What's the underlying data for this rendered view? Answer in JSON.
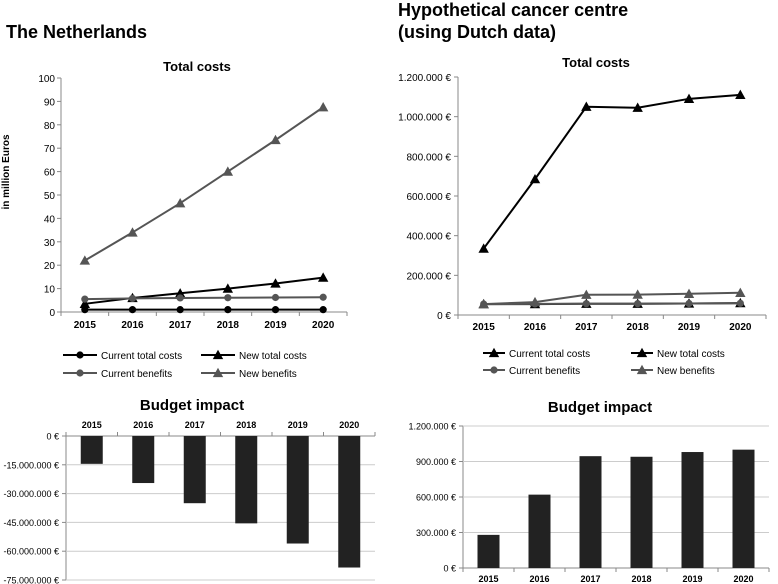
{
  "headings": {
    "left": "The Netherlands",
    "right_line1": "Hypothetical cancer centre",
    "right_line2": "(using Dutch data)"
  },
  "colors": {
    "dark": "#000000",
    "grey": "#555555",
    "axis": "#888888",
    "bar": "#222222",
    "grid": "#cccccc"
  },
  "chart_data": [
    {
      "type": "line",
      "title": "Total costs",
      "ylabel": "in million Euros",
      "xlabel": "",
      "categories": [
        "2015",
        "2016",
        "2017",
        "2018",
        "2019",
        "2020"
      ],
      "ylim": [
        0,
        100
      ],
      "yticks": [
        "0",
        "10",
        "20",
        "30",
        "40",
        "50",
        "60",
        "70",
        "80",
        "90",
        "100"
      ],
      "series": [
        {
          "name": "Current total costs",
          "marker": "circle",
          "color": "#000000",
          "values": [
            1,
            1,
            1,
            1,
            1,
            1
          ]
        },
        {
          "name": "New total costs",
          "marker": "triangle",
          "color": "#000000",
          "values": [
            3.5,
            6,
            8,
            10,
            12.2,
            14.7
          ]
        },
        {
          "name": "Current benefits",
          "marker": "circle",
          "color": "#555555",
          "values": [
            5.5,
            5.8,
            6,
            6.1,
            6.2,
            6.3
          ]
        },
        {
          "name": "New benefits",
          "marker": "triangle",
          "color": "#555555",
          "values": [
            22,
            34,
            46.5,
            60,
            73.5,
            87.5
          ]
        }
      ]
    },
    {
      "type": "line",
      "title": "Total costs",
      "ylabel": "",
      "xlabel": "",
      "categories": [
        "2015",
        "2016",
        "2017",
        "2018",
        "2019",
        "2020"
      ],
      "ylim": [
        0,
        1200000
      ],
      "yticks": [
        "0 €",
        "200.000 €",
        "400.000 €",
        "600.000 €",
        "800.000 €",
        "1.000.000 €",
        "1.200.000 €"
      ],
      "series": [
        {
          "name": "Current total costs",
          "marker": "triangle",
          "color": "#000000",
          "values": [
            335000,
            685000,
            1050000,
            1045000,
            1090000,
            1110000
          ]
        },
        {
          "name": "New total costs",
          "marker": "triangle",
          "color": "#000000",
          "values": [
            55000,
            55000,
            57000,
            57000,
            58000,
            60000
          ]
        },
        {
          "name": "Current benefits",
          "marker": "circle",
          "color": "#555555",
          "values": [
            55000,
            56000,
            57000,
            57000,
            58000,
            59000
          ]
        },
        {
          "name": "New benefits",
          "marker": "triangle",
          "color": "#555555",
          "values": [
            55000,
            65000,
            102000,
            103000,
            107000,
            112000
          ]
        }
      ]
    },
    {
      "type": "bar",
      "title": "Budget impact",
      "xlabel": "",
      "ylabel": "",
      "categories": [
        "2015",
        "2016",
        "2017",
        "2018",
        "2019",
        "2020"
      ],
      "values": [
        -14500000,
        -24500000,
        -35000000,
        -45500000,
        -56000000,
        -68500000
      ],
      "ylim": [
        -75000000,
        0
      ],
      "yticks": [
        "0 €",
        "-15.000.000 €",
        "-30.000.000 €",
        "-45.000.000 €",
        "-60.000.000 €",
        "-75.000.000 €"
      ]
    },
    {
      "type": "bar",
      "title": "Budget impact",
      "xlabel": "",
      "ylabel": "",
      "categories": [
        "2015",
        "2016",
        "2017",
        "2018",
        "2019",
        "2020"
      ],
      "values": [
        280000,
        620000,
        945000,
        940000,
        980000,
        1000000
      ],
      "ylim": [
        0,
        1200000
      ],
      "yticks": [
        "0 €",
        "300.000 €",
        "600.000 €",
        "900.000 €",
        "1.200.000 €"
      ]
    }
  ]
}
